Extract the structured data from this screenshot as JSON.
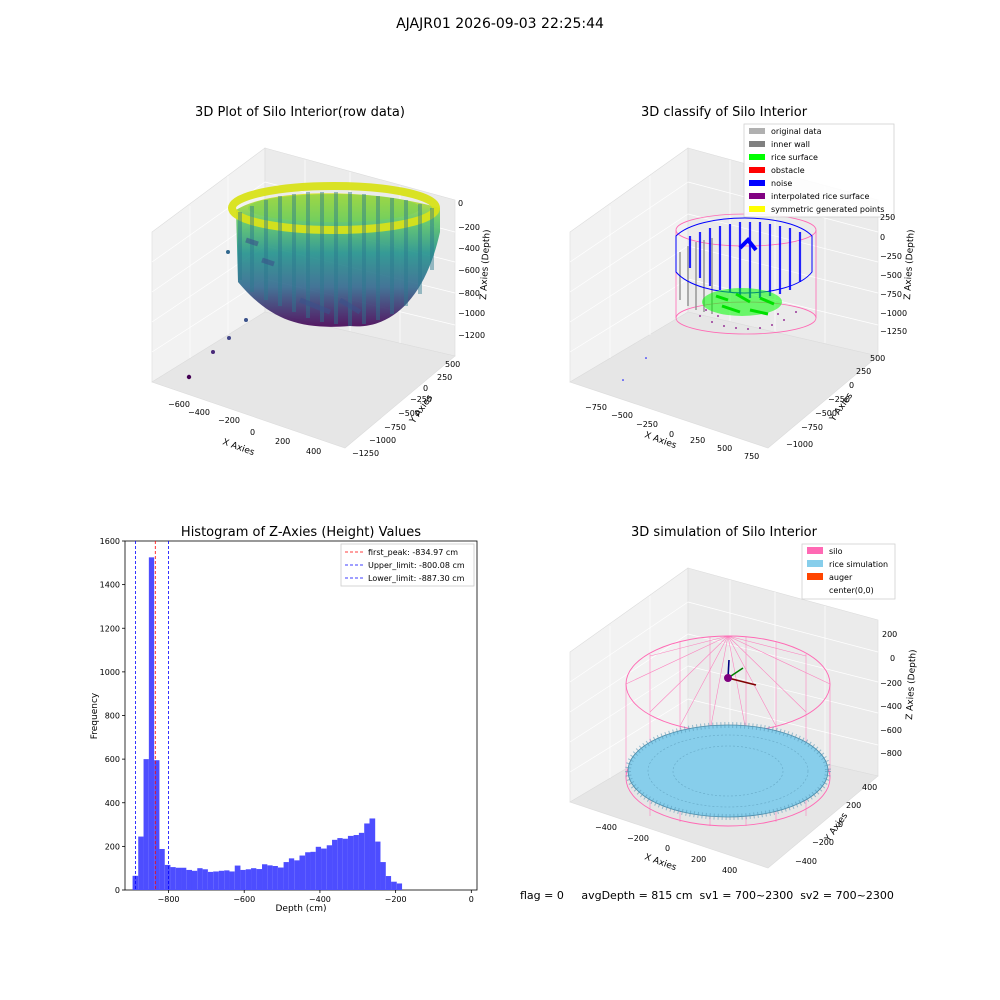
{
  "figure": {
    "suptitle": "AJAJR01 2026-09-03 22:25:44",
    "status_line": "flag = 0     avgDepth = 815 cm  sv1 = 700~2300  sv2 = 700~2300"
  },
  "chart_data": [
    {
      "type": "scatter",
      "projection": "3d",
      "title": "3D Plot of Silo Interior(row data)",
      "xlabel": "X Axies",
      "ylabel": "Y Axies",
      "zlabel": "Z Axies (Depth)",
      "x_ticks": [
        "−600",
        "−400",
        "−200",
        "0",
        "200",
        "400"
      ],
      "y_ticks": [
        "−1250",
        "−1000",
        "−750",
        "−500",
        "−250",
        "0",
        "250",
        "500"
      ],
      "z_ticks": [
        "0",
        "−200",
        "−400",
        "−600",
        "−800",
        "−1000",
        "−1200"
      ],
      "colormap": "viridis",
      "grid": true
    },
    {
      "type": "scatter",
      "projection": "3d",
      "title": "3D classify of Silo Interior",
      "xlabel": "X Axies",
      "ylabel": "Y Axies",
      "zlabel": "Z Axies (Depth)",
      "x_ticks": [
        "−750",
        "−500",
        "−250",
        "0",
        "250",
        "500",
        "750"
      ],
      "y_ticks": [
        "−1000",
        "−750",
        "−500",
        "−250",
        "0",
        "250",
        "500"
      ],
      "z_ticks": [
        "250",
        "0",
        "−250",
        "−500",
        "−750",
        "−1000",
        "−1250"
      ],
      "legend_position": "top-right",
      "legend": [
        {
          "label": "original data",
          "color": "#b0b0b0"
        },
        {
          "label": "inner wall",
          "color": "#808080"
        },
        {
          "label": "rice surface",
          "color": "#00ff00"
        },
        {
          "label": "obstacle",
          "color": "#ff0000"
        },
        {
          "label": "noise",
          "color": "#0000ff"
        },
        {
          "label": "interpolated rice surface",
          "color": "#800080"
        },
        {
          "label": "symmetric generated points",
          "color": "#ffff00"
        }
      ],
      "grid": true
    },
    {
      "type": "bar",
      "subtype": "histogram",
      "title": "Histogram of Z-Axies (Height) Values",
      "xlabel": "Depth (cm)",
      "ylabel": "Frequency",
      "xlim": [
        -915,
        15
      ],
      "ylim": [
        0,
        1600
      ],
      "x_ticks": [
        -800,
        -600,
        -400,
        -200,
        0
      ],
      "x_tick_labels": [
        "−800",
        "−600",
        "−400",
        "−200",
        "0"
      ],
      "y_ticks": [
        0,
        200,
        400,
        600,
        800,
        1000,
        1200,
        1400,
        1600
      ],
      "bar_color": "#4d4dff",
      "bins": [
        {
          "x0": -895,
          "x1": -880,
          "count": 65
        },
        {
          "x0": -880,
          "x1": -866,
          "count": 245
        },
        {
          "x0": -866,
          "x1": -852,
          "count": 600
        },
        {
          "x0": -852,
          "x1": -838,
          "count": 1525
        },
        {
          "x0": -838,
          "x1": -824,
          "count": 595
        },
        {
          "x0": -824,
          "x1": -810,
          "count": 188
        },
        {
          "x0": -810,
          "x1": -795,
          "count": 115
        },
        {
          "x0": -795,
          "x1": -781,
          "count": 105
        },
        {
          "x0": -781,
          "x1": -767,
          "count": 102
        },
        {
          "x0": -767,
          "x1": -753,
          "count": 102
        },
        {
          "x0": -753,
          "x1": -738,
          "count": 92
        },
        {
          "x0": -738,
          "x1": -724,
          "count": 88
        },
        {
          "x0": -724,
          "x1": -710,
          "count": 100
        },
        {
          "x0": -710,
          "x1": -696,
          "count": 95
        },
        {
          "x0": -696,
          "x1": -682,
          "count": 83
        },
        {
          "x0": -682,
          "x1": -667,
          "count": 85
        },
        {
          "x0": -667,
          "x1": -653,
          "count": 88
        },
        {
          "x0": -653,
          "x1": -639,
          "count": 90
        },
        {
          "x0": -639,
          "x1": -625,
          "count": 85
        },
        {
          "x0": -625,
          "x1": -610,
          "count": 112
        },
        {
          "x0": -610,
          "x1": -596,
          "count": 92
        },
        {
          "x0": -596,
          "x1": -582,
          "count": 95
        },
        {
          "x0": -582,
          "x1": -568,
          "count": 100
        },
        {
          "x0": -568,
          "x1": -553,
          "count": 96
        },
        {
          "x0": -553,
          "x1": -539,
          "count": 118
        },
        {
          "x0": -539,
          "x1": -525,
          "count": 113
        },
        {
          "x0": -525,
          "x1": -511,
          "count": 110
        },
        {
          "x0": -511,
          "x1": -496,
          "count": 103
        },
        {
          "x0": -496,
          "x1": -482,
          "count": 128
        },
        {
          "x0": -482,
          "x1": -468,
          "count": 145
        },
        {
          "x0": -468,
          "x1": -454,
          "count": 136
        },
        {
          "x0": -454,
          "x1": -439,
          "count": 158
        },
        {
          "x0": -439,
          "x1": -425,
          "count": 173
        },
        {
          "x0": -425,
          "x1": -411,
          "count": 175
        },
        {
          "x0": -411,
          "x1": -397,
          "count": 198
        },
        {
          "x0": -397,
          "x1": -382,
          "count": 190
        },
        {
          "x0": -382,
          "x1": -368,
          "count": 205
        },
        {
          "x0": -368,
          "x1": -354,
          "count": 230
        },
        {
          "x0": -354,
          "x1": -340,
          "count": 238
        },
        {
          "x0": -340,
          "x1": -326,
          "count": 235
        },
        {
          "x0": -326,
          "x1": -311,
          "count": 248
        },
        {
          "x0": -311,
          "x1": -297,
          "count": 252
        },
        {
          "x0": -297,
          "x1": -283,
          "count": 262
        },
        {
          "x0": -283,
          "x1": -269,
          "count": 305
        },
        {
          "x0": -269,
          "x1": -254,
          "count": 328
        },
        {
          "x0": -254,
          "x1": -240,
          "count": 222
        },
        {
          "x0": -240,
          "x1": -226,
          "count": 128
        },
        {
          "x0": -226,
          "x1": -212,
          "count": 64
        },
        {
          "x0": -212,
          "x1": -197,
          "count": 38
        },
        {
          "x0": -197,
          "x1": -183,
          "count": 30
        }
      ],
      "vlines": [
        {
          "x": -834.97,
          "color": "#ff0000",
          "label": "first_peak: -834.97 cm"
        },
        {
          "x": -800.08,
          "color": "#0000ff",
          "label": "Upper_limit: -800.08 cm"
        },
        {
          "x": -887.3,
          "color": "#0000ff",
          "label": "Lower_limit: -887.30 cm"
        }
      ],
      "legend_position": "top-right"
    },
    {
      "type": "scatter",
      "projection": "3d",
      "title": "3D simulation of Silo Interior",
      "xlabel": "X Axies",
      "ylabel": "Y Axies",
      "zlabel": "Z Axies (Depth)",
      "x_ticks": [
        "−400",
        "−200",
        "0",
        "200",
        "400"
      ],
      "y_ticks": [
        "−400",
        "−200",
        "0",
        "200",
        "400"
      ],
      "z_ticks": [
        "200",
        "0",
        "−200",
        "−400",
        "−600",
        "−800"
      ],
      "legend_position": "top-right",
      "legend": [
        {
          "label": "silo",
          "color": "#ff69b4"
        },
        {
          "label": "rice simulation",
          "color": "#87ceeb"
        },
        {
          "label": "auger",
          "color": "#ff4500"
        },
        {
          "label": "center(0,0)",
          "color": ""
        }
      ],
      "grid": true
    }
  ]
}
